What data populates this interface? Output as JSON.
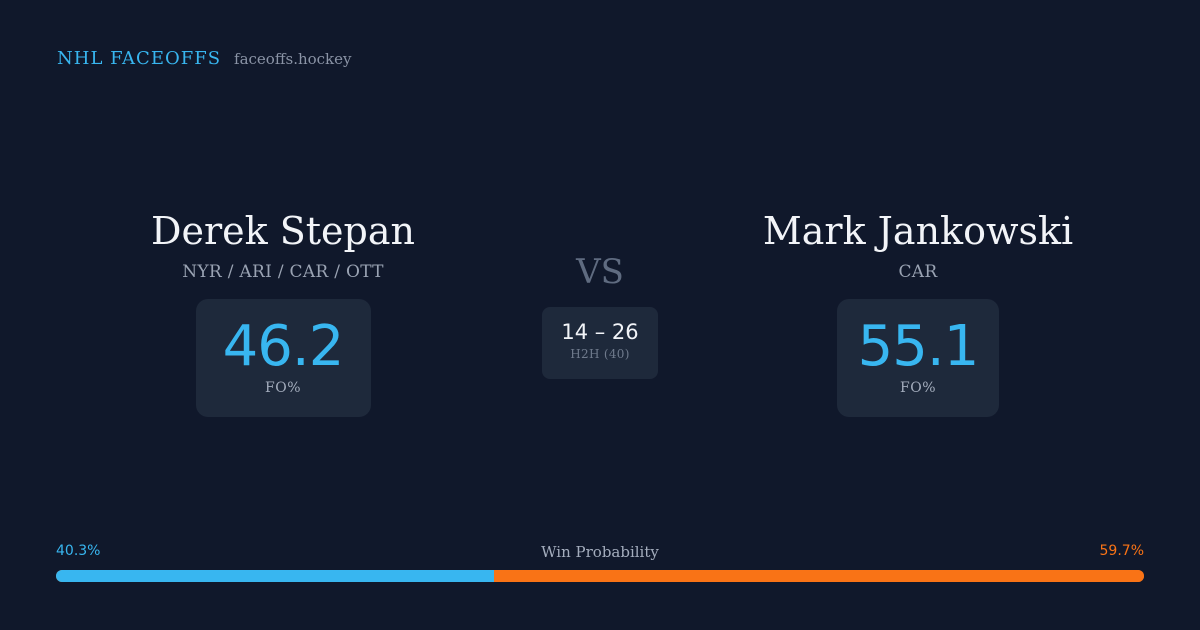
{
  "brand": {
    "title": "NHL FACEOFFS",
    "domain": "faceoffs.hockey"
  },
  "players": [
    {
      "name": "Derek Stepan",
      "teams": "NYR / ARI / CAR / OTT",
      "fo_value": "46.2",
      "fo_label": "FO%"
    },
    {
      "name": "Mark Jankowski",
      "teams": "CAR",
      "fo_value": "55.1",
      "fo_label": "FO%"
    }
  ],
  "vs_label": "VS",
  "h2h": {
    "score": "14 – 26",
    "label": "H2H (40)"
  },
  "win_probability": {
    "title": "Win Probability",
    "left_label": "40.3%",
    "right_label": "59.7%",
    "left_fraction": 0.403,
    "right_fraction": 0.597
  },
  "colors": {
    "background": "#10182b",
    "card": "#1e293b",
    "accent_blue": "#38b6f0",
    "accent_orange": "#f97316"
  }
}
